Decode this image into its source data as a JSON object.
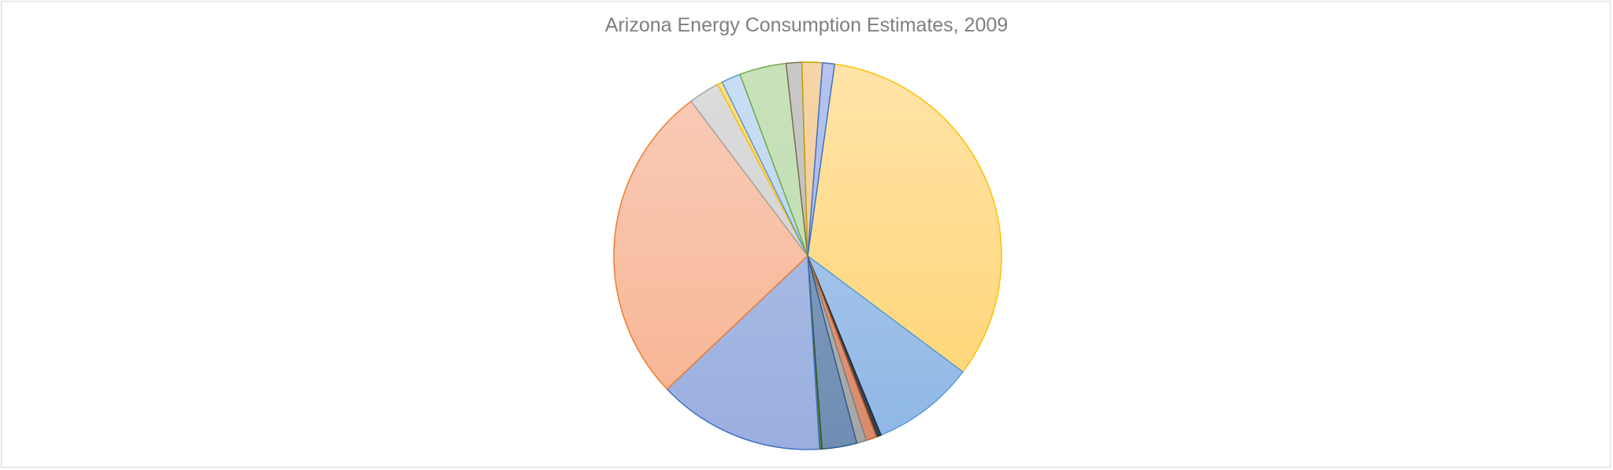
{
  "chart_data": {
    "type": "pie",
    "title": "Arizona Energy Consumption Estimates, 2009",
    "legend": "none",
    "start_angle_deg": 8.0,
    "direction": "clockwise",
    "slices": [
      {
        "value": 33.0,
        "fill_top": "#ffe3a8",
        "fill_bottom": "#ffd470",
        "stroke": "#ffc000"
      },
      {
        "value": 8.6,
        "fill_top": "#b5cfee",
        "fill_bottom": "#8eb7e6",
        "stroke": "#5b9bd5"
      },
      {
        "value": 0.4,
        "fill_top": "#44546a",
        "fill_bottom": "#333f50",
        "stroke": "#1f2d3d"
      },
      {
        "value": 0.9,
        "fill_top": "#e7a88e",
        "fill_bottom": "#d9896d",
        "stroke": "#c55a11"
      },
      {
        "value": 0.8,
        "fill_top": "#bfbfbf",
        "fill_bottom": "#a5a5a5",
        "stroke": "#7f7f7f"
      },
      {
        "value": 2.9,
        "fill_top": "#8aa3c2",
        "fill_bottom": "#6f8db3",
        "stroke": "#2e5d8e"
      },
      {
        "value": 0.2,
        "fill_top": "#70ad47",
        "fill_bottom": "#548235",
        "stroke": "#375623"
      },
      {
        "value": 13.9,
        "fill_top": "#b4c4e6",
        "fill_bottom": "#9aafe0",
        "stroke": "#4472c4"
      },
      {
        "value": 26.8,
        "fill_top": "#f9ccb9",
        "fill_bottom": "#f7b391",
        "stroke": "#ed7d31"
      },
      {
        "value": 2.6,
        "fill_top": "#dcdcdc",
        "fill_bottom": "#d0d0d0",
        "stroke": "#a5a5a5"
      },
      {
        "value": 0.4,
        "fill_top": "#ffe08a",
        "fill_bottom": "#ffd350",
        "stroke": "#ffc000"
      },
      {
        "value": 1.6,
        "fill_top": "#c9def4",
        "fill_bottom": "#b9d3f0",
        "stroke": "#5b9bd5"
      },
      {
        "value": 3.9,
        "fill_top": "#c8e2bc",
        "fill_bottom": "#bcdcae",
        "stroke": "#70ad47"
      },
      {
        "value": 1.3,
        "fill_top": "#c9c9c9",
        "fill_bottom": "#b8b8b8",
        "stroke": "#7f6f4f"
      },
      {
        "value": 1.7,
        "fill_top": "#f6d5a8",
        "fill_bottom": "#f2c690",
        "stroke": "#c5a000"
      },
      {
        "value": 1.0,
        "fill_top": "#b4c4ee",
        "fill_bottom": "#9fb4e8",
        "stroke": "#4472c4"
      },
      {
        "value": 0.0,
        "fill_top": "#dcdcdc",
        "fill_bottom": "#d0d0d0",
        "stroke": "#a5a5a5"
      }
    ]
  }
}
